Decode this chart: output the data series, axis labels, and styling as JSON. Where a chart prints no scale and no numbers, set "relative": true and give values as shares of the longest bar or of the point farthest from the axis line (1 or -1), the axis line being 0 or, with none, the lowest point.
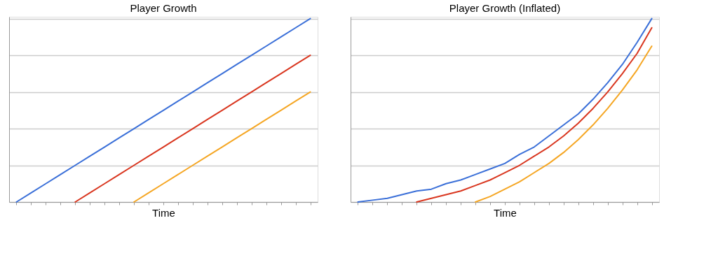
{
  "chart_data": [
    {
      "type": "line",
      "title": "Player Growth",
      "xlabel": "Time",
      "relative": true,
      "grid": "y",
      "tick_labels": false,
      "categories": [
        null,
        null,
        null,
        null,
        null,
        null,
        null,
        null,
        null,
        null,
        null,
        null,
        null,
        null,
        null,
        null,
        null,
        null,
        null,
        null,
        null
      ],
      "series": [
        {
          "color": "#3a6fd8",
          "values": [
            0,
            0.05,
            0.1,
            0.15,
            0.2,
            0.25,
            0.3,
            0.35,
            0.4,
            0.45,
            0.5,
            0.55,
            0.6,
            0.65,
            0.7,
            0.75,
            0.8,
            0.85,
            0.9,
            0.95,
            1.0
          ]
        },
        {
          "color": "#d9361f",
          "values": [
            null,
            null,
            null,
            null,
            0,
            0.05,
            0.1,
            0.15,
            0.2,
            0.25,
            0.3,
            0.35,
            0.4,
            0.45,
            0.5,
            0.55,
            0.6,
            0.65,
            0.7,
            0.75,
            0.8
          ]
        },
        {
          "color": "#f5a623",
          "values": [
            null,
            null,
            null,
            null,
            null,
            null,
            null,
            null,
            0,
            0.05,
            0.1,
            0.15,
            0.2,
            0.25,
            0.3,
            0.35,
            0.4,
            0.45,
            0.5,
            0.55,
            0.6
          ]
        }
      ]
    },
    {
      "type": "line",
      "title": "Player Growth (Inflated)",
      "xlabel": "Time",
      "relative": true,
      "grid": "y",
      "tick_labels": false,
      "categories": [
        null,
        null,
        null,
        null,
        null,
        null,
        null,
        null,
        null,
        null,
        null,
        null,
        null,
        null,
        null,
        null,
        null,
        null,
        null,
        null,
        null
      ],
      "series": [
        {
          "color": "#3a6fd8",
          "values": [
            0,
            0.01,
            0.02,
            0.04,
            0.06,
            0.07,
            0.1,
            0.12,
            0.15,
            0.18,
            0.21,
            0.26,
            0.3,
            0.36,
            0.42,
            0.48,
            0.56,
            0.65,
            0.75,
            0.87,
            1.0
          ]
        },
        {
          "color": "#d9361f",
          "values": [
            null,
            null,
            null,
            null,
            0,
            0.02,
            0.04,
            0.06,
            0.09,
            0.12,
            0.16,
            0.2,
            0.25,
            0.3,
            0.36,
            0.43,
            0.51,
            0.6,
            0.7,
            0.81,
            0.95
          ]
        },
        {
          "color": "#f5a623",
          "values": [
            null,
            null,
            null,
            null,
            null,
            null,
            null,
            null,
            0,
            0.03,
            0.07,
            0.11,
            0.16,
            0.21,
            0.27,
            0.34,
            0.42,
            0.51,
            0.61,
            0.72,
            0.85
          ]
        }
      ]
    }
  ]
}
